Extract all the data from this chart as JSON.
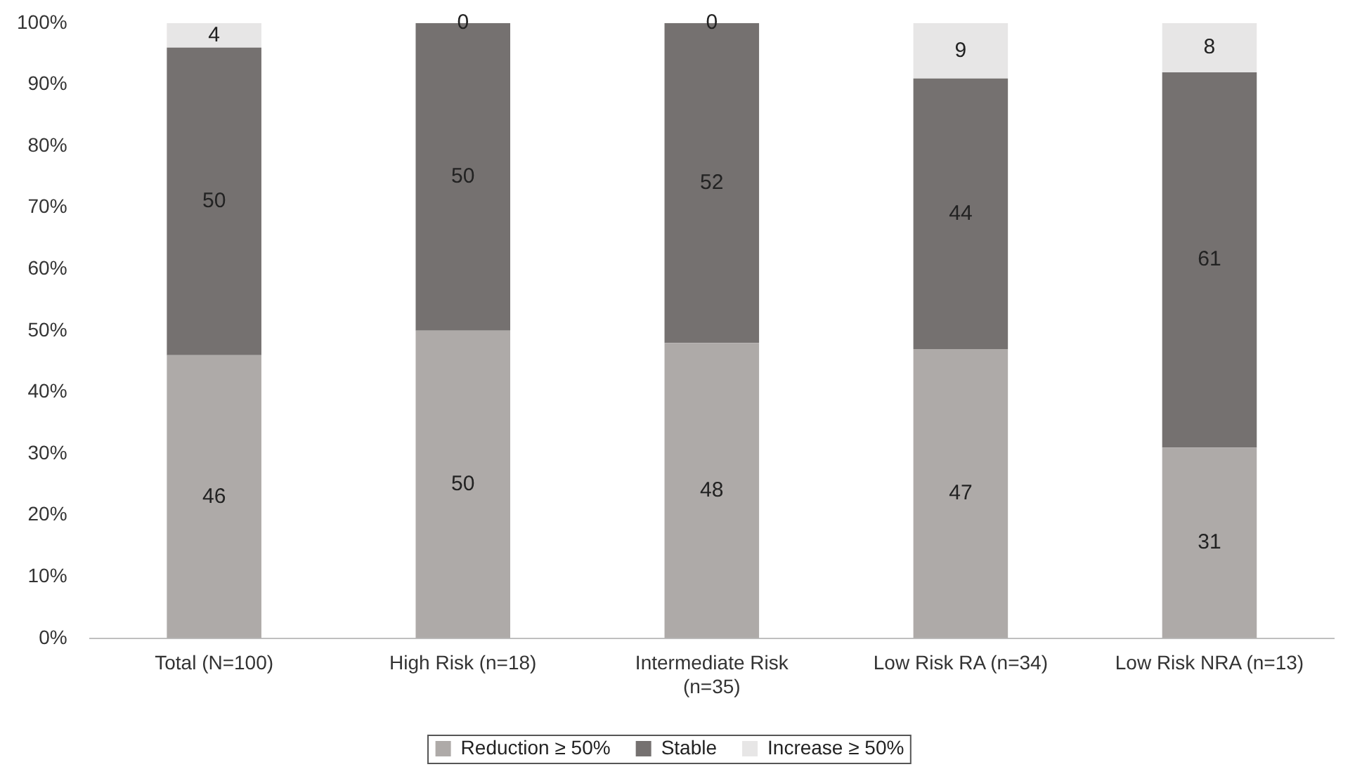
{
  "chart_data": {
    "type": "bar",
    "stacked": true,
    "categories": [
      "Total (N=100)",
      "High Risk (n=18)",
      "Intermediate Risk (n=35)",
      "Low Risk RA (n=34)",
      "Low Risk NRA (n=13)"
    ],
    "series": [
      {
        "name": "Reduction ≥ 50%",
        "color": "#aeaaa8",
        "values": [
          46,
          50,
          48,
          47,
          31
        ]
      },
      {
        "name": "Stable",
        "color": "#757170",
        "values": [
          50,
          50,
          52,
          44,
          61
        ]
      },
      {
        "name": "Increase ≥ 50%",
        "color": "#e7e6e6",
        "values": [
          4,
          0,
          0,
          9,
          8
        ]
      }
    ],
    "ylim": [
      0,
      100
    ],
    "yticks": [
      {
        "value": 0,
        "label": "0%"
      },
      {
        "value": 10,
        "label": "10%"
      },
      {
        "value": 20,
        "label": "20%"
      },
      {
        "value": 30,
        "label": "30%"
      },
      {
        "value": 40,
        "label": "40%"
      },
      {
        "value": 50,
        "label": "50%"
      },
      {
        "value": 60,
        "label": "60%"
      },
      {
        "value": 70,
        "label": "70%"
      },
      {
        "value": 80,
        "label": "80%"
      },
      {
        "value": 90,
        "label": "90%"
      },
      {
        "value": 100,
        "label": "100%"
      }
    ],
    "grid": false,
    "legend": "bottom",
    "data_labels": true
  }
}
